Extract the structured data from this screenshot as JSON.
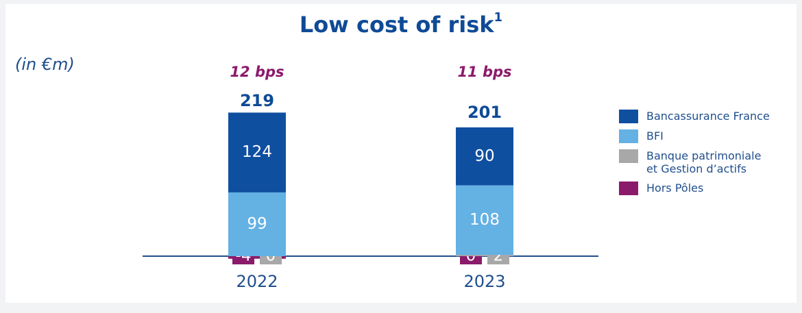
{
  "chart_data": {
    "type": "stacked_bar",
    "title": "Low cost of risk",
    "title_note": "1",
    "unit_label": "(in €m)",
    "categories": [
      "2022",
      "2023"
    ],
    "annotations": [
      "12 bps",
      "11 bps"
    ],
    "totals": [
      219,
      201
    ],
    "series": [
      {
        "name": "Bancassurance France",
        "color": "#0f4fa0",
        "values": [
          124,
          90
        ]
      },
      {
        "name": "BFI",
        "color": "#64b1e4",
        "values": [
          99,
          108
        ]
      },
      {
        "name": "Banque patrimoniale et Gestion d’actifs",
        "color": "#a8a8a8",
        "values": [
          0,
          2
        ]
      },
      {
        "name": "Hors Pôles",
        "color": "#8b1a6b",
        "values": [
          -4,
          0
        ]
      }
    ],
    "legend": "right"
  }
}
